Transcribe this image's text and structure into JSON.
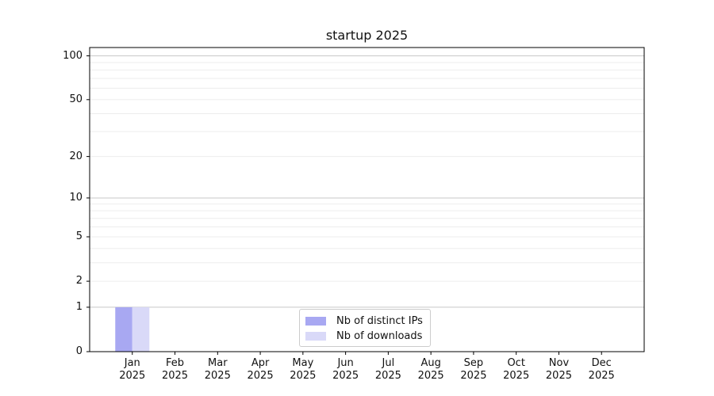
{
  "chart_data": {
    "type": "bar",
    "title": "startup 2025",
    "x_tick_months": [
      "Jan",
      "Feb",
      "Mar",
      "Apr",
      "May",
      "Jun",
      "Jul",
      "Aug",
      "Sep",
      "Oct",
      "Nov",
      "Dec"
    ],
    "x_tick_year": "2025",
    "series": [
      {
        "name": "Nb of distinct IPs",
        "color": "#a8a8f2",
        "values": [
          1,
          0,
          0,
          0,
          0,
          0,
          0,
          0,
          0,
          0,
          0,
          0
        ]
      },
      {
        "name": "Nb of downloads",
        "color": "#d9d9f8",
        "values": [
          1,
          0,
          0,
          0,
          0,
          0,
          0,
          0,
          0,
          0,
          0,
          0
        ]
      }
    ],
    "y_scale": "log1p",
    "y_ticks": [
      0,
      1,
      2,
      5,
      10,
      20,
      50,
      100
    ],
    "y_minor_ticks": [
      3,
      4,
      6,
      7,
      8,
      9,
      30,
      40,
      60,
      70,
      80,
      90
    ],
    "ylim": [
      0,
      114
    ],
    "grid": true,
    "legend": {
      "position": "lower center"
    }
  },
  "colors": {
    "decade_grid": "#c8c8c8",
    "minor_grid": "#ededed",
    "axis": "#000000",
    "text": "#111111",
    "legend_border": "#cccccc",
    "background": "#ffffff"
  }
}
